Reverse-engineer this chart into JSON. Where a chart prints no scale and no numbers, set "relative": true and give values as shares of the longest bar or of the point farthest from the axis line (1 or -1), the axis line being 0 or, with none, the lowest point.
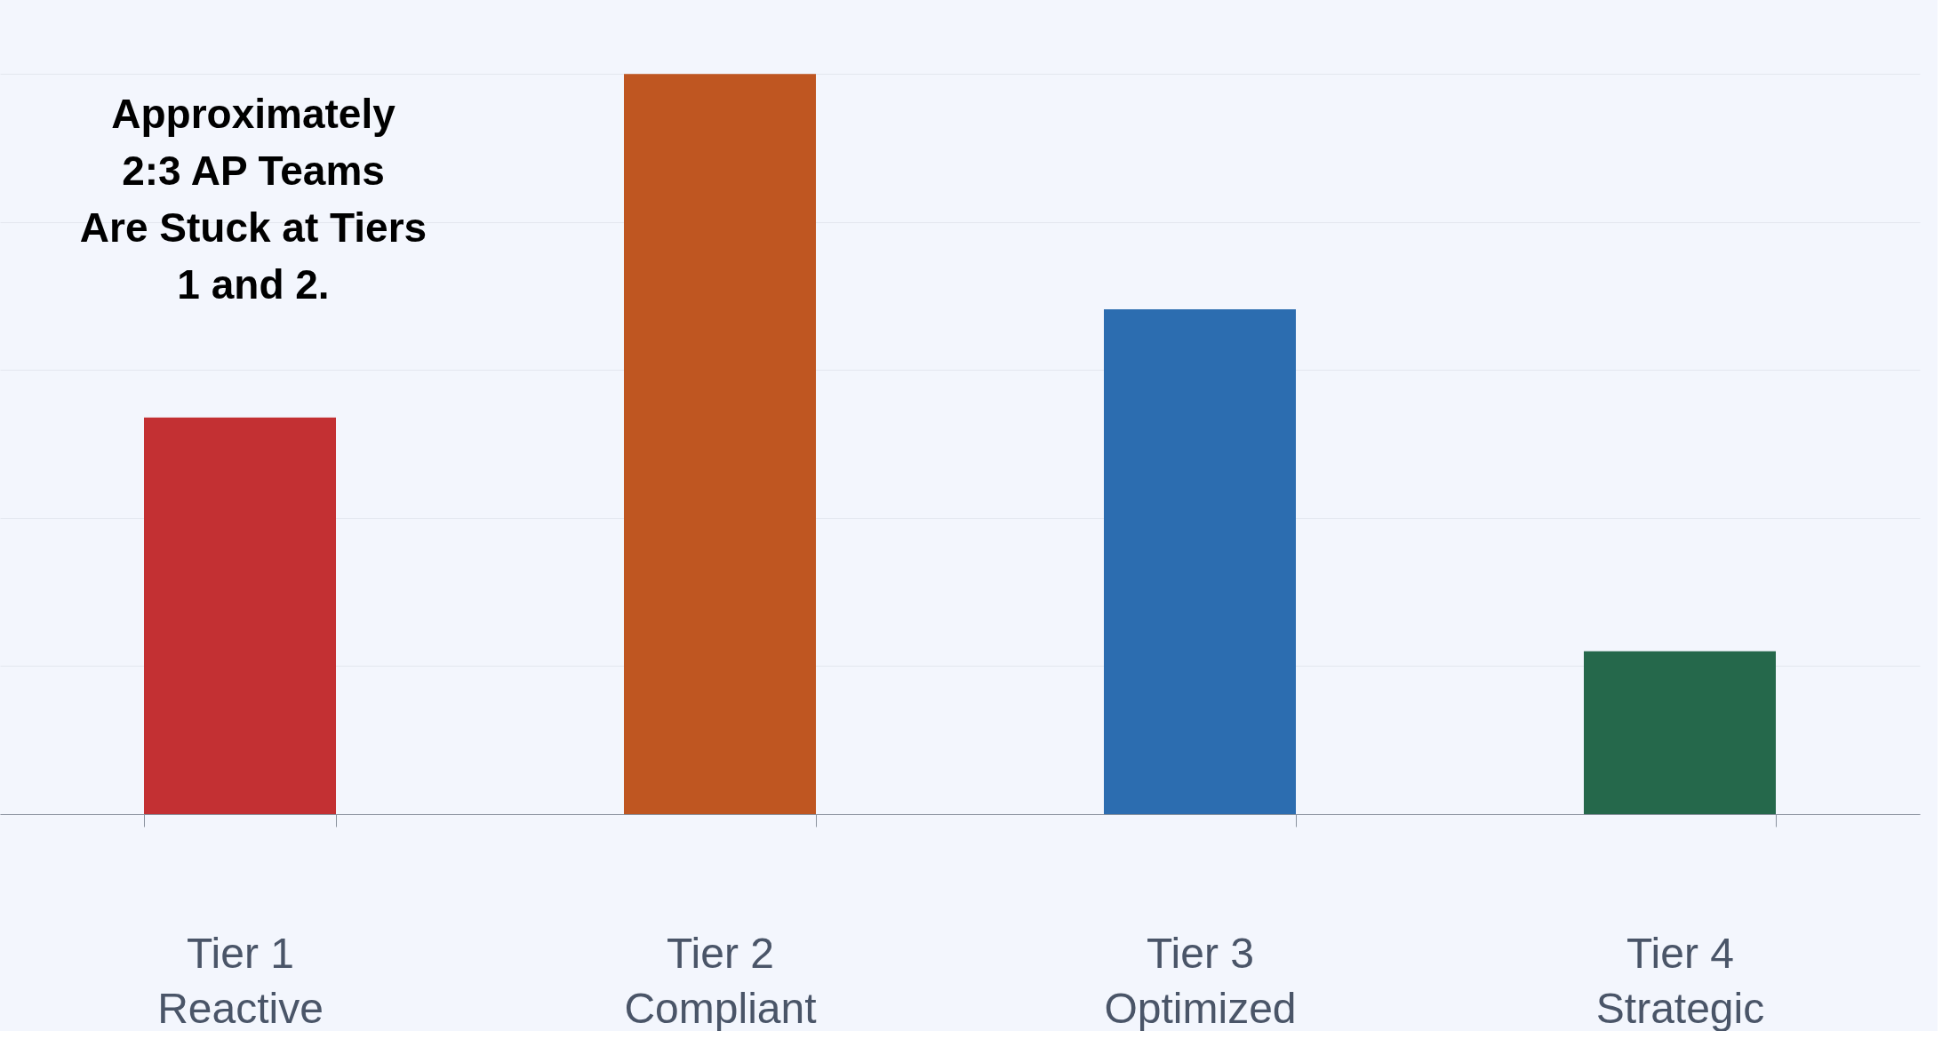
{
  "chart_data": {
    "type": "bar",
    "relative": true,
    "categories": [
      "Tier 1\nReactive",
      "Tier 2\nCompliant",
      "Tier 3\nOptimized",
      "Tier 4\nStrategic"
    ],
    "values": [
      0.536,
      1,
      0.682,
      0.22
    ],
    "colors": [
      "#c33033",
      "#bf5621",
      "#2c6db0",
      "#25684b"
    ],
    "annotations": [
      "Approximately\n2:3 AP Teams\nAre Stuck at Tiers\n1 and 2."
    ],
    "grid": "y"
  }
}
